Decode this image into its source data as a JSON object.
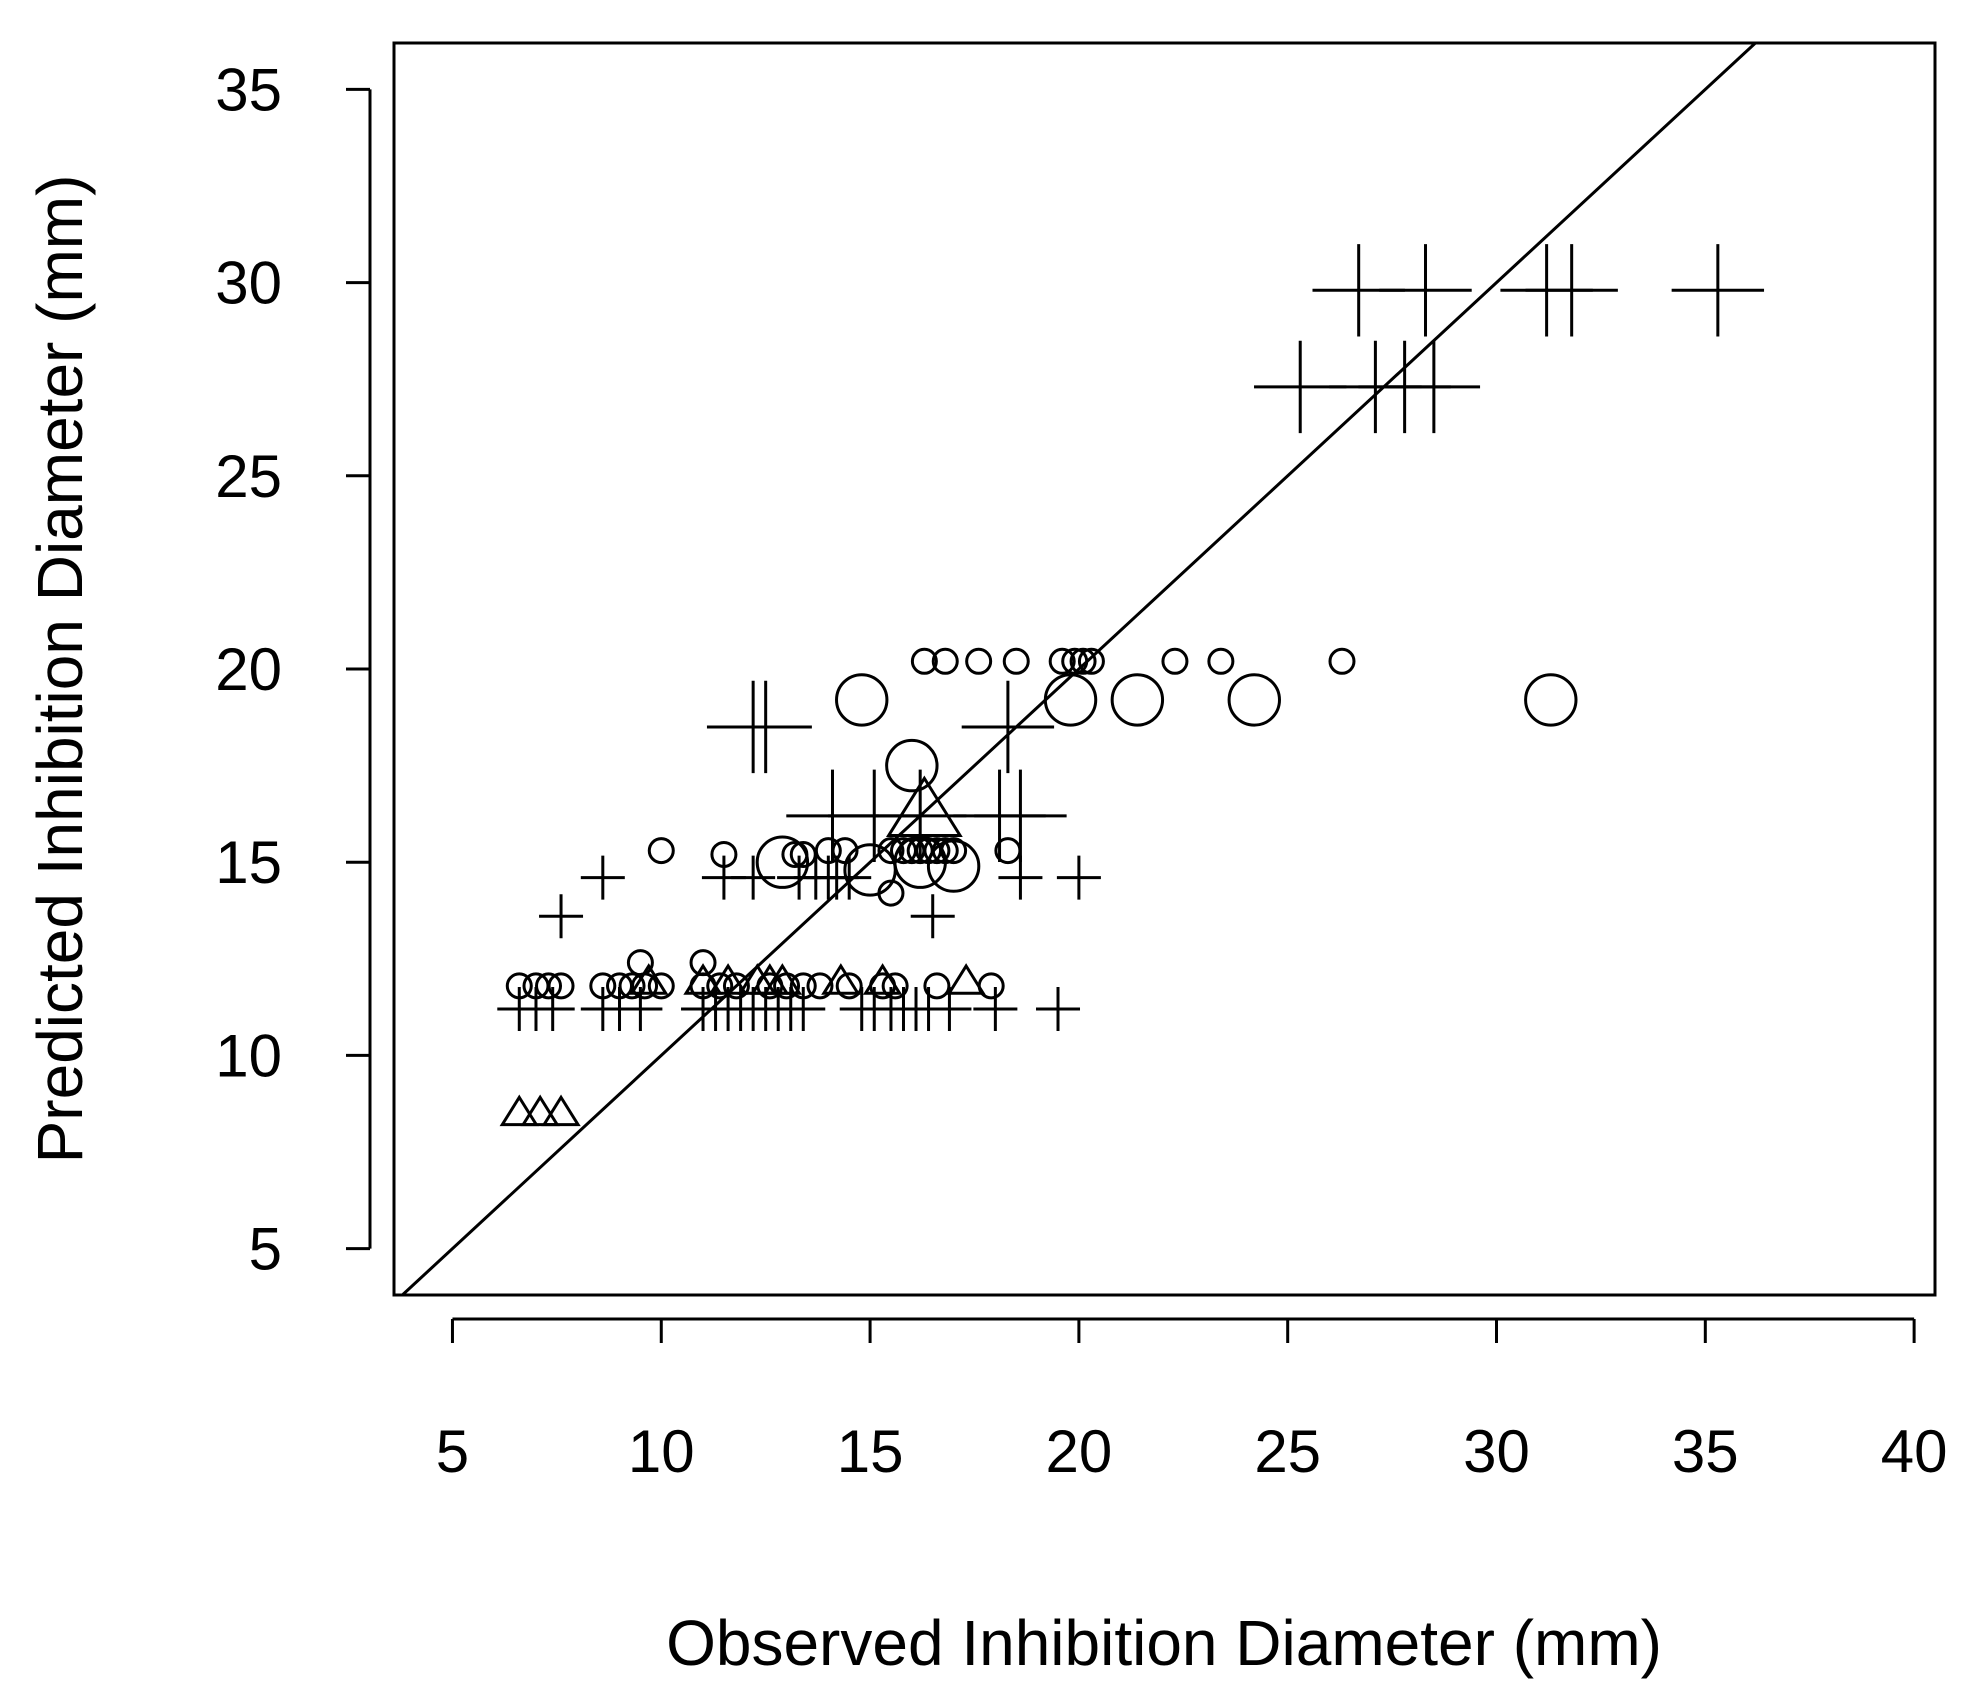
{
  "chart_data": {
    "type": "scatter",
    "title": "",
    "xlabel": "Observed Inhibition Diameter (mm)",
    "ylabel": "Predicted Inhibition Diameter (mm)",
    "xlim": [
      3.6,
      40.5
    ],
    "ylim": [
      3.8,
      36.2
    ],
    "xticks": [
      5,
      10,
      15,
      20,
      25,
      30,
      35,
      40
    ],
    "yticks": [
      5,
      10,
      15,
      20,
      25,
      30,
      35
    ],
    "xtick_labels": [
      "5",
      "10",
      "15",
      "20",
      "25",
      "30",
      "35",
      "40"
    ],
    "ytick_labels": [
      "5",
      "10",
      "15",
      "20",
      "25",
      "30",
      "35"
    ],
    "grid": false,
    "reference_line": {
      "slope": 1,
      "intercept": 0,
      "label": "y = x"
    },
    "series": [
      {
        "name": "plus",
        "marker": "plus",
        "points": [
          {
            "x": 26.7,
            "y": 29.8,
            "s": 2.1
          },
          {
            "x": 28.3,
            "y": 29.8,
            "s": 2.1
          },
          {
            "x": 31.2,
            "y": 29.8,
            "s": 2.1
          },
          {
            "x": 31.8,
            "y": 29.8,
            "s": 2.1
          },
          {
            "x": 35.3,
            "y": 29.8,
            "s": 2.1
          },
          {
            "x": 25.3,
            "y": 27.3,
            "s": 2.1
          },
          {
            "x": 27.1,
            "y": 27.3,
            "s": 2.1
          },
          {
            "x": 27.8,
            "y": 27.3,
            "s": 2.1
          },
          {
            "x": 28.5,
            "y": 27.3,
            "s": 2.1
          },
          {
            "x": 12.2,
            "y": 18.5,
            "s": 2.1
          },
          {
            "x": 12.5,
            "y": 18.5,
            "s": 2.1
          },
          {
            "x": 18.3,
            "y": 18.5,
            "s": 2.1
          },
          {
            "x": 14.1,
            "y": 16.2,
            "s": 2.1
          },
          {
            "x": 15.1,
            "y": 16.2,
            "s": 2.1
          },
          {
            "x": 16.2,
            "y": 16.2,
            "s": 2.1
          },
          {
            "x": 18.1,
            "y": 16.2,
            "s": 2.1
          },
          {
            "x": 18.6,
            "y": 16.2,
            "s": 2.1
          },
          {
            "x": 8.6,
            "y": 14.6,
            "s": 1
          },
          {
            "x": 11.5,
            "y": 14.6,
            "s": 1
          },
          {
            "x": 12.2,
            "y": 14.6,
            "s": 1
          },
          {
            "x": 13.3,
            "y": 14.6,
            "s": 1
          },
          {
            "x": 13.7,
            "y": 14.6,
            "s": 1
          },
          {
            "x": 14.0,
            "y": 14.6,
            "s": 1
          },
          {
            "x": 14.2,
            "y": 14.6,
            "s": 1
          },
          {
            "x": 14.5,
            "y": 14.6,
            "s": 1
          },
          {
            "x": 18.6,
            "y": 14.6,
            "s": 1
          },
          {
            "x": 20.0,
            "y": 14.6,
            "s": 1
          },
          {
            "x": 7.6,
            "y": 13.6,
            "s": 1
          },
          {
            "x": 16.5,
            "y": 13.6,
            "s": 1
          },
          {
            "x": 6.6,
            "y": 11.2,
            "s": 1
          },
          {
            "x": 7.0,
            "y": 11.2,
            "s": 1
          },
          {
            "x": 7.4,
            "y": 11.2,
            "s": 1
          },
          {
            "x": 8.6,
            "y": 11.2,
            "s": 1
          },
          {
            "x": 9.0,
            "y": 11.2,
            "s": 1
          },
          {
            "x": 9.5,
            "y": 11.2,
            "s": 1
          },
          {
            "x": 11.0,
            "y": 11.2,
            "s": 1
          },
          {
            "x": 11.3,
            "y": 11.2,
            "s": 1
          },
          {
            "x": 11.6,
            "y": 11.2,
            "s": 1
          },
          {
            "x": 11.9,
            "y": 11.2,
            "s": 1
          },
          {
            "x": 12.2,
            "y": 11.2,
            "s": 1
          },
          {
            "x": 12.5,
            "y": 11.2,
            "s": 1
          },
          {
            "x": 12.8,
            "y": 11.2,
            "s": 1
          },
          {
            "x": 13.1,
            "y": 11.2,
            "s": 1
          },
          {
            "x": 13.4,
            "y": 11.2,
            "s": 1
          },
          {
            "x": 14.8,
            "y": 11.2,
            "s": 1
          },
          {
            "x": 15.1,
            "y": 11.2,
            "s": 1
          },
          {
            "x": 15.5,
            "y": 11.2,
            "s": 1
          },
          {
            "x": 15.8,
            "y": 11.2,
            "s": 1
          },
          {
            "x": 16.1,
            "y": 11.2,
            "s": 1
          },
          {
            "x": 16.4,
            "y": 11.2,
            "s": 1
          },
          {
            "x": 16.9,
            "y": 11.2,
            "s": 1
          },
          {
            "x": 18.0,
            "y": 11.2,
            "s": 1
          },
          {
            "x": 19.5,
            "y": 11.2,
            "s": 1
          }
        ]
      },
      {
        "name": "circle",
        "marker": "circle",
        "points": [
          {
            "x": 31.3,
            "y": 19.2,
            "s": 2.1
          },
          {
            "x": 24.2,
            "y": 19.2,
            "s": 2.1
          },
          {
            "x": 21.4,
            "y": 19.2,
            "s": 2.1
          },
          {
            "x": 19.8,
            "y": 19.2,
            "s": 2.1
          },
          {
            "x": 14.8,
            "y": 19.2,
            "s": 2.1
          },
          {
            "x": 16.0,
            "y": 17.5,
            "s": 2.1
          },
          {
            "x": 12.9,
            "y": 15.0,
            "s": 2.1
          },
          {
            "x": 15.0,
            "y": 14.8,
            "s": 2.1
          },
          {
            "x": 16.2,
            "y": 15.0,
            "s": 2.1
          },
          {
            "x": 17.0,
            "y": 14.9,
            "s": 2.1
          },
          {
            "x": 16.3,
            "y": 20.2,
            "s": 1
          },
          {
            "x": 16.8,
            "y": 20.2,
            "s": 1
          },
          {
            "x": 17.6,
            "y": 20.2,
            "s": 1
          },
          {
            "x": 18.5,
            "y": 20.2,
            "s": 1
          },
          {
            "x": 19.6,
            "y": 20.2,
            "s": 1
          },
          {
            "x": 19.9,
            "y": 20.2,
            "s": 1
          },
          {
            "x": 20.1,
            "y": 20.2,
            "s": 1
          },
          {
            "x": 20.3,
            "y": 20.2,
            "s": 1
          },
          {
            "x": 22.3,
            "y": 20.2,
            "s": 1
          },
          {
            "x": 23.4,
            "y": 20.2,
            "s": 1
          },
          {
            "x": 26.3,
            "y": 20.2,
            "s": 1
          },
          {
            "x": 10.0,
            "y": 15.3,
            "s": 1
          },
          {
            "x": 11.5,
            "y": 15.2,
            "s": 1
          },
          {
            "x": 13.2,
            "y": 15.2,
            "s": 1
          },
          {
            "x": 13.4,
            "y": 15.2,
            "s": 1
          },
          {
            "x": 14.0,
            "y": 15.3,
            "s": 1
          },
          {
            "x": 14.4,
            "y": 15.3,
            "s": 1
          },
          {
            "x": 15.5,
            "y": 15.3,
            "s": 1
          },
          {
            "x": 15.8,
            "y": 15.3,
            "s": 1
          },
          {
            "x": 16.0,
            "y": 15.3,
            "s": 1
          },
          {
            "x": 16.2,
            "y": 15.3,
            "s": 1
          },
          {
            "x": 16.4,
            "y": 15.3,
            "s": 1
          },
          {
            "x": 16.6,
            "y": 15.3,
            "s": 1
          },
          {
            "x": 16.8,
            "y": 15.3,
            "s": 1
          },
          {
            "x": 17.0,
            "y": 15.3,
            "s": 1
          },
          {
            "x": 18.3,
            "y": 15.3,
            "s": 1
          },
          {
            "x": 15.5,
            "y": 14.2,
            "s": 1
          },
          {
            "x": 9.5,
            "y": 12.4,
            "s": 1
          },
          {
            "x": 11.0,
            "y": 12.4,
            "s": 1
          },
          {
            "x": 6.6,
            "y": 11.8,
            "s": 1
          },
          {
            "x": 7.0,
            "y": 11.8,
            "s": 1
          },
          {
            "x": 7.3,
            "y": 11.8,
            "s": 1
          },
          {
            "x": 7.6,
            "y": 11.8,
            "s": 1
          },
          {
            "x": 8.6,
            "y": 11.8,
            "s": 1
          },
          {
            "x": 9.0,
            "y": 11.8,
            "s": 1
          },
          {
            "x": 9.3,
            "y": 11.8,
            "s": 1
          },
          {
            "x": 9.6,
            "y": 11.8,
            "s": 1
          },
          {
            "x": 10.0,
            "y": 11.8,
            "s": 1
          },
          {
            "x": 11.0,
            "y": 11.8,
            "s": 1
          },
          {
            "x": 11.4,
            "y": 11.8,
            "s": 1
          },
          {
            "x": 11.8,
            "y": 11.8,
            "s": 1
          },
          {
            "x": 12.6,
            "y": 11.8,
            "s": 1
          },
          {
            "x": 13.0,
            "y": 11.8,
            "s": 1
          },
          {
            "x": 13.4,
            "y": 11.8,
            "s": 1
          },
          {
            "x": 13.8,
            "y": 11.8,
            "s": 1
          },
          {
            "x": 14.5,
            "y": 11.8,
            "s": 1
          },
          {
            "x": 15.3,
            "y": 11.8,
            "s": 1
          },
          {
            "x": 15.6,
            "y": 11.8,
            "s": 1
          },
          {
            "x": 16.6,
            "y": 11.8,
            "s": 1
          },
          {
            "x": 17.9,
            "y": 11.8,
            "s": 1
          }
        ]
      },
      {
        "name": "triangle",
        "marker": "triangle",
        "points": [
          {
            "x": 16.3,
            "y": 16.3,
            "s": 2.1
          },
          {
            "x": 6.6,
            "y": 8.5,
            "s": 1
          },
          {
            "x": 7.1,
            "y": 8.5,
            "s": 1
          },
          {
            "x": 7.6,
            "y": 8.5,
            "s": 1
          },
          {
            "x": 9.7,
            "y": 11.9,
            "s": 1
          },
          {
            "x": 11.0,
            "y": 11.9,
            "s": 1
          },
          {
            "x": 11.6,
            "y": 11.9,
            "s": 1
          },
          {
            "x": 12.3,
            "y": 11.9,
            "s": 1
          },
          {
            "x": 12.6,
            "y": 11.9,
            "s": 1
          },
          {
            "x": 12.9,
            "y": 11.9,
            "s": 1
          },
          {
            "x": 14.3,
            "y": 11.9,
            "s": 1
          },
          {
            "x": 15.3,
            "y": 11.9,
            "s": 1
          },
          {
            "x": 17.3,
            "y": 11.9,
            "s": 1
          }
        ]
      }
    ]
  }
}
